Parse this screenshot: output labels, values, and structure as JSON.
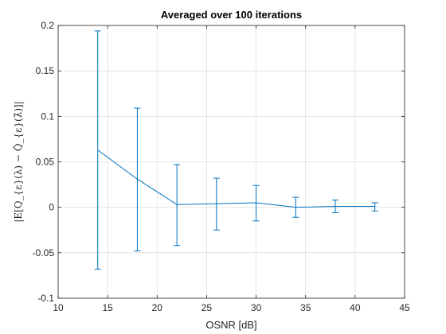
{
  "chart_data": {
    "type": "line",
    "title": "Averaged over 100 iterations",
    "xlabel": "OSNR [dB]",
    "ylabel": "|E[Q_{ε}(λ) − Q̂_{ε}(λ̂)]|",
    "xlim": [
      10,
      45
    ],
    "ylim": [
      -0.1,
      0.2
    ],
    "xticks": [
      10,
      15,
      20,
      25,
      30,
      35,
      40,
      45
    ],
    "xtick_labels": [
      "10",
      "15",
      "20",
      "25",
      "30",
      "35",
      "40",
      "45"
    ],
    "yticks": [
      -0.1,
      -0.05,
      0,
      0.05,
      0.1,
      0.15,
      0.2
    ],
    "ytick_labels": [
      "-0.1",
      "-0.05",
      "0",
      "0.05",
      "0.1",
      "0.15",
      "0.2"
    ],
    "grid": true,
    "series": [
      {
        "color": "#0072bd",
        "x": [
          14,
          18,
          22,
          26,
          30,
          34,
          38,
          42
        ],
        "y": [
          0.063,
          0.031,
          0.003,
          0.004,
          0.005,
          0.0,
          0.001,
          0.001
        ],
        "err_low": [
          -0.068,
          -0.048,
          -0.042,
          -0.025,
          -0.015,
          -0.011,
          -0.006,
          -0.004
        ],
        "err_high": [
          0.194,
          0.109,
          0.047,
          0.032,
          0.024,
          0.011,
          0.008,
          0.005
        ]
      }
    ]
  }
}
